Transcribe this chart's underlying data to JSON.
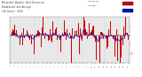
{
  "n_bars": 150,
  "background_color": "#ffffff",
  "plot_bg": "#e8e8e8",
  "bar_color": "#cc0000",
  "line_color": "#0000cc",
  "ylim": [
    -1.5,
    1.0
  ],
  "fig_bg": "#ffffff",
  "legend_colors": [
    "#cc0000",
    "#0000cc"
  ],
  "title_color": "#333333",
  "grid_color": "#aaaaaa",
  "tick_color": "#333333",
  "seed": 17
}
